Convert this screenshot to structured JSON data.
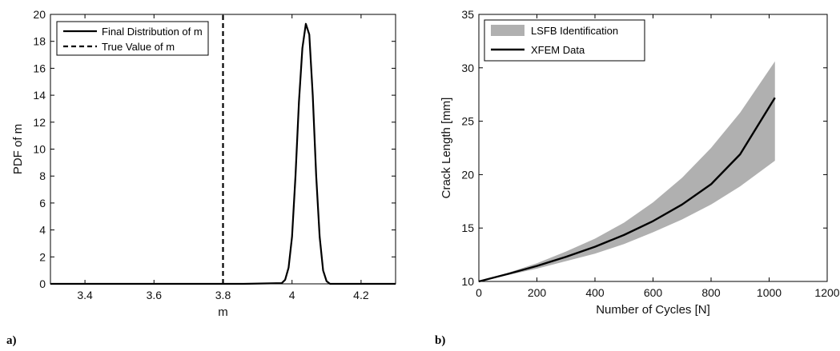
{
  "panel_labels": {
    "a": "a)",
    "b": "b)"
  },
  "chart_data": [
    {
      "type": "line",
      "xlabel": "m",
      "ylabel": "PDF of m",
      "xlim": [
        3.3,
        4.3
      ],
      "ylim": [
        0,
        20
      ],
      "xticks": [
        "3.4",
        "3.6",
        "3.8",
        "4",
        "4.2"
      ],
      "yticks": [
        "0",
        "2",
        "4",
        "6",
        "8",
        "10",
        "12",
        "14",
        "16",
        "18",
        "20"
      ],
      "legend_position": "top-left",
      "series": [
        {
          "name": "Final Distribution of m",
          "style": "solid",
          "x": [
            3.3,
            3.86,
            3.97,
            3.98,
            3.99,
            4.0,
            4.01,
            4.02,
            4.03,
            4.04,
            4.05,
            4.06,
            4.07,
            4.08,
            4.09,
            4.1,
            4.11,
            4.3
          ],
          "y": [
            0,
            0,
            0.05,
            0.3,
            1.2,
            3.5,
            8.0,
            13.5,
            17.5,
            19.3,
            18.5,
            14.0,
            8.0,
            3.5,
            1.0,
            0.2,
            0,
            0
          ]
        },
        {
          "name": "True Value of m",
          "style": "dashed",
          "x": [
            3.8,
            3.8
          ],
          "y": [
            0,
            20
          ]
        }
      ]
    },
    {
      "type": "area",
      "xlabel": "Number of Cycles [N]",
      "ylabel": "Crack Length [mm]",
      "xlim": [
        0,
        1200
      ],
      "ylim": [
        10,
        35
      ],
      "xticks": [
        "0",
        "200",
        "400",
        "600",
        "800",
        "1000",
        "1200"
      ],
      "yticks": [
        "10",
        "15",
        "20",
        "25",
        "30",
        "35"
      ],
      "legend_position": "top-left",
      "series": [
        {
          "name": "LSFB Identification",
          "style": "band",
          "color": "#b0b0b0",
          "x": [
            0,
            100,
            200,
            300,
            400,
            500,
            600,
            700,
            800,
            900,
            1020
          ],
          "lower": [
            10.0,
            10.6,
            11.2,
            11.9,
            12.6,
            13.5,
            14.6,
            15.8,
            17.2,
            18.9,
            21.3
          ],
          "upper": [
            10.0,
            10.8,
            11.7,
            12.8,
            14.0,
            15.5,
            17.4,
            19.7,
            22.5,
            25.8,
            30.6
          ]
        },
        {
          "name": "XFEM Data",
          "style": "solid",
          "color": "#000000",
          "x": [
            0,
            100,
            200,
            300,
            400,
            500,
            600,
            700,
            800,
            900,
            1020
          ],
          "y": [
            10.0,
            10.7,
            11.45,
            12.3,
            13.25,
            14.35,
            15.65,
            17.2,
            19.1,
            21.9,
            27.2
          ]
        }
      ]
    }
  ]
}
